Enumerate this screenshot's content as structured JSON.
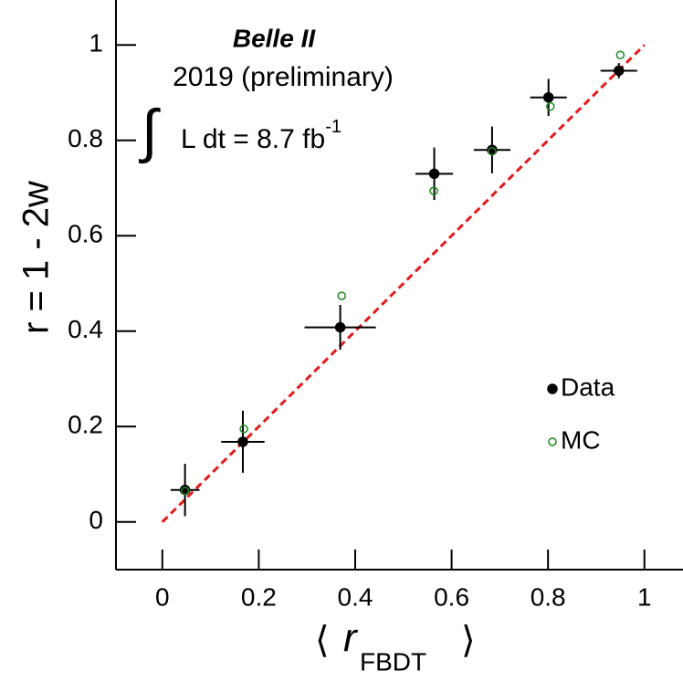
{
  "chart_data": {
    "type": "scatter",
    "annotations": {
      "experiment": "Belle II",
      "year": "2019 (preliminary)",
      "integral": "∫",
      "lumi": "L dt = 8.7 fb",
      "lumi_exp": "-1"
    },
    "y_label": "r = 1 - 2w",
    "x_label_parts": [
      "⟨",
      "r",
      "FBDT",
      "⟩"
    ],
    "xlim": [
      -0.1,
      1.08
    ],
    "ylim": [
      -0.1,
      1.1
    ],
    "xticks": [
      0,
      0.2,
      0.4,
      0.6,
      0.8,
      1
    ],
    "yticks": [
      0,
      0.2,
      0.4,
      0.6,
      0.8,
      1
    ],
    "legend": "right",
    "reference_line": {
      "x": [
        0,
        1
      ],
      "y": [
        0,
        1
      ],
      "color": "#e41a1c"
    },
    "series": [
      {
        "name": "Data",
        "color": "#000000",
        "marker": "filled",
        "x": [
          0.047,
          0.167,
          0.369,
          0.564,
          0.684,
          0.801,
          0.947
        ],
        "y": [
          0.067,
          0.168,
          0.408,
          0.73,
          0.78,
          0.89,
          0.946
        ],
        "xerr": [
          0.03,
          0.045,
          0.074,
          0.039,
          0.038,
          0.038,
          0.038
        ],
        "yerr": [
          0.055,
          0.065,
          0.047,
          0.055,
          0.049,
          0.039,
          0.016
        ]
      },
      {
        "name": "MC",
        "color": "#1a8a1a",
        "marker": "open",
        "x": [
          0.047,
          0.169,
          0.372,
          0.563,
          0.684,
          0.805,
          0.95
        ],
        "y": [
          0.065,
          0.195,
          0.474,
          0.694,
          0.777,
          0.871,
          0.979
        ]
      }
    ]
  }
}
